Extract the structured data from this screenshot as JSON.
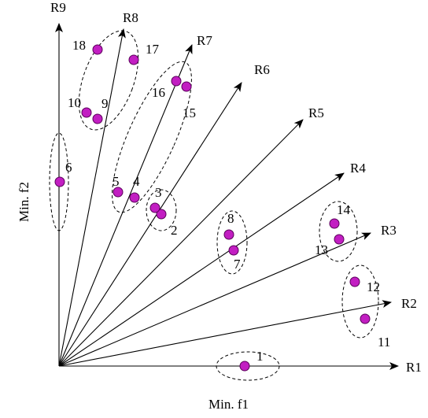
{
  "axes": {
    "x_label": "Min. f1",
    "y_label": "Min. f2"
  },
  "colors": {
    "point_fill": "#c21ec2",
    "point_stroke": "#5a005a",
    "line": "#000000"
  },
  "rays": [
    {
      "name": "R1"
    },
    {
      "name": "R2"
    },
    {
      "name": "R3"
    },
    {
      "name": "R4"
    },
    {
      "name": "R5"
    },
    {
      "name": "R6"
    },
    {
      "name": "R7"
    },
    {
      "name": "R8"
    },
    {
      "name": "R9"
    }
  ],
  "points": [
    {
      "id": "1"
    },
    {
      "id": "2"
    },
    {
      "id": "3"
    },
    {
      "id": "4"
    },
    {
      "id": "5"
    },
    {
      "id": "6"
    },
    {
      "id": "7"
    },
    {
      "id": "8"
    },
    {
      "id": "9"
    },
    {
      "id": "10"
    },
    {
      "id": "11"
    },
    {
      "id": "12"
    },
    {
      "id": "13"
    },
    {
      "id": "14"
    },
    {
      "id": "15"
    },
    {
      "id": "16"
    },
    {
      "id": "17"
    },
    {
      "id": "18"
    }
  ]
}
